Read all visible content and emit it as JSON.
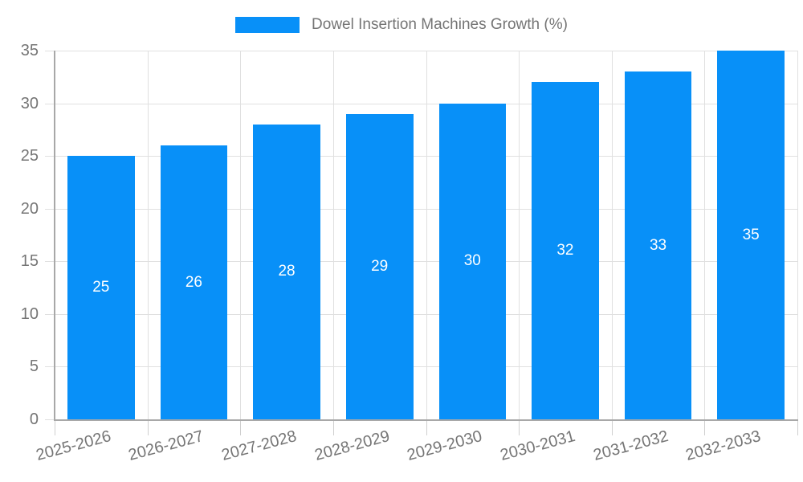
{
  "page": {
    "background": "#ffffff"
  },
  "legend": {
    "label": "Dowel Insertion Machines Growth (%)"
  },
  "chart_data": {
    "type": "bar",
    "title": "Dowel Insertion Machines Growth (%)",
    "categories": [
      "2025-2026",
      "2026-2027",
      "2027-2028",
      "2028-2029",
      "2029-2030",
      "2030-2031",
      "2031-2032",
      "2032-2033"
    ],
    "values": [
      25,
      26,
      28,
      29,
      30,
      32,
      33,
      35
    ],
    "value_labels": [
      "25",
      "26",
      "28",
      "29",
      "30",
      "32",
      "33",
      "35"
    ],
    "xlabel": "",
    "ylabel": "",
    "ylim": [
      0,
      35
    ],
    "yticks": [
      0,
      5,
      10,
      15,
      20,
      25,
      30,
      35
    ],
    "grid": true,
    "legend_position": "top-center",
    "bar_color": "#0890F8",
    "bar_value_label_color": "#FFFFFF",
    "tick_label_color": "#757575",
    "grid_color": "#E0E0E0",
    "axis_color": "#A8A8A8"
  }
}
